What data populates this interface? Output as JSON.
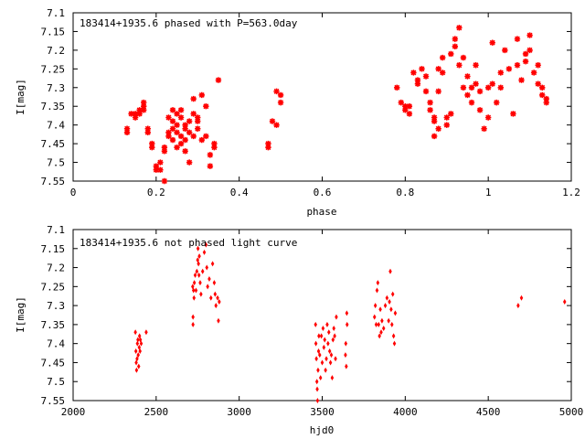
{
  "chart_data": [
    {
      "type": "scatter",
      "title": "183414+1935.6 phased with P=563.0day",
      "xlabel": "phase",
      "ylabel": "I[mag]",
      "xlim": [
        0,
        1.2
      ],
      "ylim": [
        7.55,
        7.1
      ],
      "y_inverted": true,
      "x_ticks": [
        "0",
        "0.2",
        "0.4",
        "0.6",
        "0.8",
        "1",
        "1.2"
      ],
      "y_ticks": [
        "7.1",
        "7.15",
        "7.2",
        "7.25",
        "7.3",
        "7.35",
        "7.4",
        "7.45",
        "7.5",
        "7.55"
      ],
      "grid": false,
      "marker": "star",
      "marker_color": "#ff0000",
      "points": [
        [
          0.13,
          7.41
        ],
        [
          0.13,
          7.42
        ],
        [
          0.14,
          7.37
        ],
        [
          0.15,
          7.37
        ],
        [
          0.15,
          7.38
        ],
        [
          0.16,
          7.36
        ],
        [
          0.16,
          7.37
        ],
        [
          0.17,
          7.35
        ],
        [
          0.17,
          7.36
        ],
        [
          0.17,
          7.34
        ],
        [
          0.18,
          7.41
        ],
        [
          0.18,
          7.42
        ],
        [
          0.19,
          7.45
        ],
        [
          0.19,
          7.46
        ],
        [
          0.2,
          7.51
        ],
        [
          0.2,
          7.52
        ],
        [
          0.21,
          7.5
        ],
        [
          0.21,
          7.52
        ],
        [
          0.22,
          7.55
        ],
        [
          0.22,
          7.47
        ],
        [
          0.23,
          7.43
        ],
        [
          0.23,
          7.42
        ],
        [
          0.24,
          7.36
        ],
        [
          0.24,
          7.39
        ],
        [
          0.24,
          7.44
        ],
        [
          0.25,
          7.46
        ],
        [
          0.25,
          7.37
        ],
        [
          0.25,
          7.42
        ],
        [
          0.25,
          7.4
        ],
        [
          0.26,
          7.45
        ],
        [
          0.26,
          7.43
        ],
        [
          0.26,
          7.38
        ],
        [
          0.26,
          7.36
        ],
        [
          0.27,
          7.41
        ],
        [
          0.27,
          7.4
        ],
        [
          0.27,
          7.47
        ],
        [
          0.28,
          7.39
        ],
        [
          0.28,
          7.42
        ],
        [
          0.28,
          7.5
        ],
        [
          0.29,
          7.43
        ],
        [
          0.29,
          7.37
        ],
        [
          0.29,
          7.33
        ],
        [
          0.3,
          7.41
        ],
        [
          0.3,
          7.38
        ],
        [
          0.31,
          7.32
        ],
        [
          0.31,
          7.44
        ],
        [
          0.32,
          7.43
        ],
        [
          0.32,
          7.35
        ],
        [
          0.33,
          7.48
        ],
        [
          0.33,
          7.51
        ],
        [
          0.34,
          7.46
        ],
        [
          0.34,
          7.45
        ],
        [
          0.35,
          7.28
        ],
        [
          0.23,
          7.38
        ],
        [
          0.24,
          7.41
        ],
        [
          0.27,
          7.44
        ],
        [
          0.3,
          7.39
        ],
        [
          0.22,
          7.46
        ],
        [
          0.47,
          7.45
        ],
        [
          0.47,
          7.46
        ],
        [
          0.48,
          7.39
        ],
        [
          0.49,
          7.4
        ],
        [
          0.49,
          7.31
        ],
        [
          0.5,
          7.32
        ],
        [
          0.5,
          7.34
        ],
        [
          0.78,
          7.3
        ],
        [
          0.79,
          7.34
        ],
        [
          0.8,
          7.35
        ],
        [
          0.8,
          7.36
        ],
        [
          0.81,
          7.35
        ],
        [
          0.81,
          7.37
        ],
        [
          0.82,
          7.26
        ],
        [
          0.83,
          7.28
        ],
        [
          0.83,
          7.29
        ],
        [
          0.84,
          7.25
        ],
        [
          0.85,
          7.27
        ],
        [
          0.85,
          7.31
        ],
        [
          0.86,
          7.34
        ],
        [
          0.86,
          7.36
        ],
        [
          0.87,
          7.38
        ],
        [
          0.87,
          7.39
        ],
        [
          0.87,
          7.43
        ],
        [
          0.88,
          7.41
        ],
        [
          0.88,
          7.25
        ],
        [
          0.89,
          7.22
        ],
        [
          0.89,
          7.26
        ],
        [
          0.9,
          7.38
        ],
        [
          0.9,
          7.4
        ],
        [
          0.91,
          7.37
        ],
        [
          0.91,
          7.21
        ],
        [
          0.92,
          7.19
        ],
        [
          0.92,
          7.17
        ],
        [
          0.93,
          7.14
        ],
        [
          0.93,
          7.24
        ],
        [
          0.94,
          7.22
        ],
        [
          0.95,
          7.27
        ],
        [
          0.95,
          7.32
        ],
        [
          0.96,
          7.3
        ],
        [
          0.96,
          7.34
        ],
        [
          0.97,
          7.29
        ],
        [
          0.98,
          7.36
        ],
        [
          0.98,
          7.31
        ],
        [
          0.99,
          7.41
        ],
        [
          1.0,
          7.38
        ],
        [
          1.0,
          7.3
        ],
        [
          1.01,
          7.29
        ],
        [
          1.01,
          7.18
        ],
        [
          1.02,
          7.34
        ],
        [
          1.03,
          7.3
        ],
        [
          1.03,
          7.26
        ],
        [
          1.04,
          7.2
        ],
        [
          1.05,
          7.25
        ],
        [
          1.06,
          7.37
        ],
        [
          1.07,
          7.24
        ],
        [
          1.08,
          7.28
        ],
        [
          1.09,
          7.23
        ],
        [
          1.1,
          7.16
        ],
        [
          1.1,
          7.2
        ],
        [
          1.11,
          7.26
        ],
        [
          1.12,
          7.29
        ],
        [
          1.13,
          7.3
        ],
        [
          1.14,
          7.33
        ],
        [
          1.14,
          7.34
        ],
        [
          1.13,
          7.32
        ],
        [
          1.12,
          7.24
        ],
        [
          1.09,
          7.21
        ],
        [
          1.07,
          7.17
        ],
        [
          0.97,
          7.24
        ],
        [
          0.94,
          7.3
        ],
        [
          0.88,
          7.31
        ]
      ]
    },
    {
      "type": "scatter",
      "title": "183414+1935.6 not phased light curve",
      "xlabel": "hjd0",
      "ylabel": "I[mag]",
      "xlim": [
        2000,
        5000
      ],
      "ylim": [
        7.55,
        7.1
      ],
      "y_inverted": true,
      "x_ticks": [
        "2000",
        "2500",
        "3000",
        "3500",
        "4000",
        "4500",
        "5000"
      ],
      "y_ticks": [
        "7.1",
        "7.15",
        "7.2",
        "7.25",
        "7.3",
        "7.35",
        "7.4",
        "7.45",
        "7.5",
        "7.55"
      ],
      "grid": false,
      "marker": "diamond",
      "marker_color": "#ff0000",
      "points": [
        [
          2375,
          7.37
        ],
        [
          2378,
          7.42
        ],
        [
          2380,
          7.45
        ],
        [
          2382,
          7.47
        ],
        [
          2385,
          7.44
        ],
        [
          2387,
          7.4
        ],
        [
          2390,
          7.39
        ],
        [
          2392,
          7.43
        ],
        [
          2395,
          7.46
        ],
        [
          2398,
          7.41
        ],
        [
          2400,
          7.38
        ],
        [
          2403,
          7.42
        ],
        [
          2405,
          7.39
        ],
        [
          2410,
          7.4
        ],
        [
          2440,
          7.37
        ],
        [
          2720,
          7.25
        ],
        [
          2722,
          7.33
        ],
        [
          2725,
          7.26
        ],
        [
          2728,
          7.28
        ],
        [
          2730,
          7.24
        ],
        [
          2735,
          7.22
        ],
        [
          2740,
          7.26
        ],
        [
          2745,
          7.21
        ],
        [
          2750,
          7.18
        ],
        [
          2752,
          7.15
        ],
        [
          2755,
          7.19
        ],
        [
          2758,
          7.22
        ],
        [
          2760,
          7.17
        ],
        [
          2765,
          7.24
        ],
        [
          2770,
          7.27
        ],
        [
          2780,
          7.21
        ],
        [
          2800,
          7.14
        ],
        [
          2805,
          7.2
        ],
        [
          2810,
          7.25
        ],
        [
          2820,
          7.23
        ],
        [
          2830,
          7.28
        ],
        [
          2840,
          7.19
        ],
        [
          2850,
          7.24
        ],
        [
          2855,
          7.27
        ],
        [
          2860,
          7.3
        ],
        [
          2870,
          7.28
        ],
        [
          2875,
          7.34
        ],
        [
          2880,
          7.29
        ],
        [
          2722,
          7.35
        ],
        [
          2790,
          7.16
        ],
        [
          3460,
          7.35
        ],
        [
          3462,
          7.4
        ],
        [
          3465,
          7.44
        ],
        [
          3468,
          7.5
        ],
        [
          3470,
          7.52
        ],
        [
          3472,
          7.55
        ],
        [
          3475,
          7.47
        ],
        [
          3478,
          7.42
        ],
        [
          3480,
          7.38
        ],
        [
          3485,
          7.43
        ],
        [
          3490,
          7.49
        ],
        [
          3495,
          7.38
        ],
        [
          3500,
          7.45
        ],
        [
          3505,
          7.36
        ],
        [
          3510,
          7.41
        ],
        [
          3515,
          7.39
        ],
        [
          3520,
          7.47
        ],
        [
          3525,
          7.44
        ],
        [
          3530,
          7.35
        ],
        [
          3535,
          7.4
        ],
        [
          3540,
          7.37
        ],
        [
          3545,
          7.42
        ],
        [
          3550,
          7.45
        ],
        [
          3555,
          7.43
        ],
        [
          3560,
          7.49
        ],
        [
          3565,
          7.39
        ],
        [
          3570,
          7.36
        ],
        [
          3575,
          7.38
        ],
        [
          3580,
          7.44
        ],
        [
          3585,
          7.33
        ],
        [
          3640,
          7.43
        ],
        [
          3642,
          7.4
        ],
        [
          3645,
          7.46
        ],
        [
          3648,
          7.32
        ],
        [
          3650,
          7.35
        ],
        [
          3815,
          7.33
        ],
        [
          3820,
          7.3
        ],
        [
          3825,
          7.35
        ],
        [
          3830,
          7.26
        ],
        [
          3835,
          7.24
        ],
        [
          3840,
          7.35
        ],
        [
          3845,
          7.38
        ],
        [
          3850,
          7.31
        ],
        [
          3855,
          7.37
        ],
        [
          3860,
          7.34
        ],
        [
          3870,
          7.36
        ],
        [
          3880,
          7.3
        ],
        [
          3890,
          7.28
        ],
        [
          3900,
          7.34
        ],
        [
          3905,
          7.29
        ],
        [
          3910,
          7.21
        ],
        [
          3915,
          7.31
        ],
        [
          3920,
          7.35
        ],
        [
          3925,
          7.27
        ],
        [
          3930,
          7.38
        ],
        [
          3935,
          7.4
        ],
        [
          3940,
          7.32
        ],
        [
          4680,
          7.3
        ],
        [
          4700,
          7.28
        ],
        [
          4960,
          7.29
        ]
      ]
    }
  ]
}
